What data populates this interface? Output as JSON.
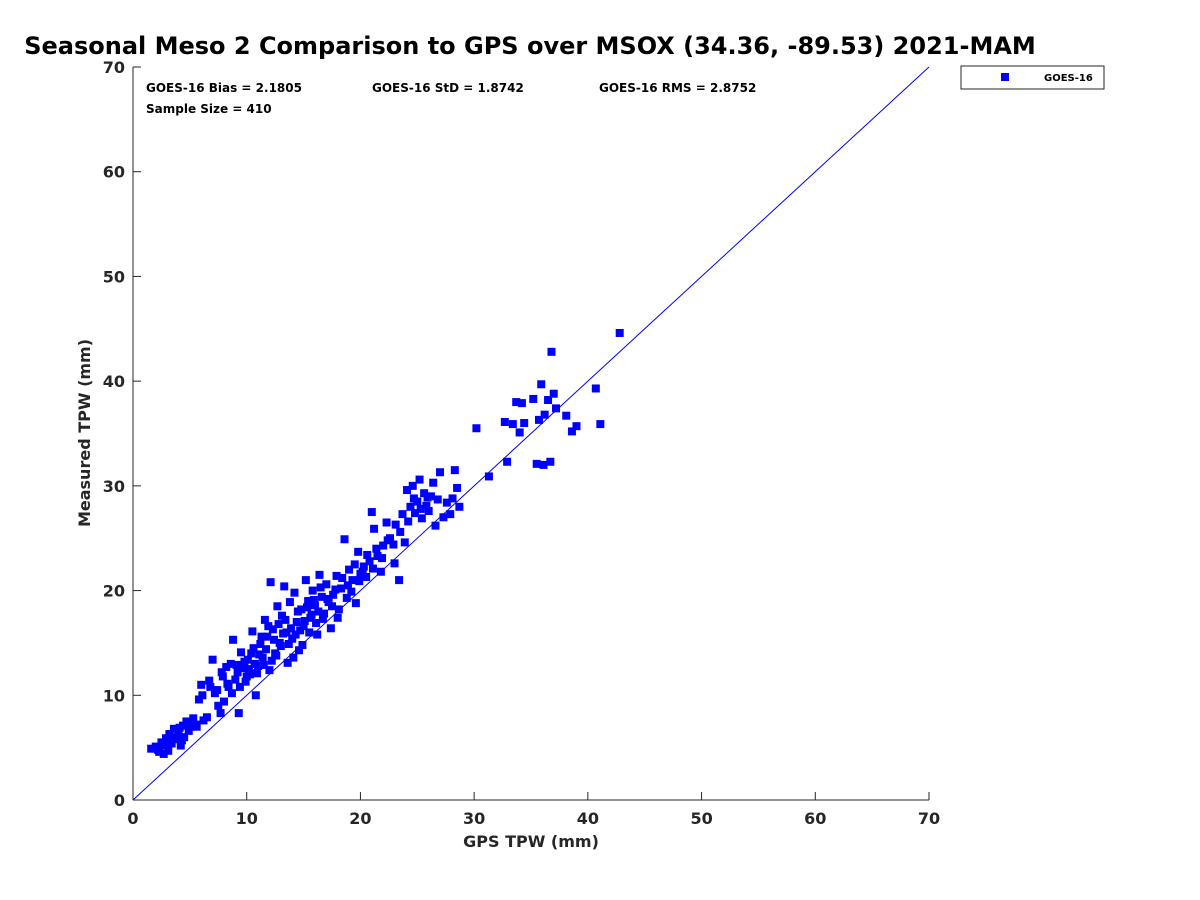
{
  "chart_data": {
    "type": "scatter",
    "title": "Seasonal Meso 2 Comparison to GPS over MSOX (34.36, -89.53) 2021-MAM",
    "xlabel": "GPS TPW (mm)",
    "ylabel": "Measured TPW (mm)",
    "xlim": [
      0,
      70
    ],
    "ylim": [
      0,
      70
    ],
    "xticks": [
      0,
      10,
      20,
      30,
      40,
      50,
      60,
      70
    ],
    "yticks": [
      0,
      10,
      20,
      30,
      40,
      50,
      60,
      70
    ],
    "grid": false,
    "legend_position": "top-right outside",
    "reference_line": {
      "x": [
        0,
        70
      ],
      "y": [
        0,
        70
      ],
      "color": "#0000ff"
    },
    "annotations": {
      "bias": "GOES-16 Bias = 2.1805",
      "std": "GOES-16 StD = 1.8742",
      "rms": "GOES-16 RMS = 2.8752",
      "sample_size": "Sample Size = 410"
    },
    "series": [
      {
        "name": "GOES-16",
        "color": "#0000ff",
        "marker": "square",
        "points": [
          [
            1.6,
            4.9
          ],
          [
            2.0,
            5.1
          ],
          [
            2.3,
            4.6
          ],
          [
            2.5,
            5.5
          ],
          [
            2.7,
            4.4
          ],
          [
            2.9,
            5.9
          ],
          [
            3.1,
            4.7
          ],
          [
            3.2,
            6.3
          ],
          [
            3.4,
            5.4
          ],
          [
            3.6,
            6.8
          ],
          [
            3.8,
            5.8
          ],
          [
            4.0,
            6.4
          ],
          [
            4.2,
            5.2
          ],
          [
            4.4,
            7.1
          ],
          [
            4.5,
            6.0
          ],
          [
            4.7,
            7.5
          ],
          [
            4.9,
            6.6
          ],
          [
            5.1,
            7.0
          ],
          [
            5.3,
            7.8
          ],
          [
            5.5,
            7.2
          ],
          [
            5.8,
            9.6
          ],
          [
            6.0,
            11.0
          ],
          [
            6.2,
            7.6
          ],
          [
            6.5,
            7.9
          ],
          [
            6.7,
            11.4
          ],
          [
            7.0,
            13.4
          ],
          [
            7.2,
            10.2
          ],
          [
            7.5,
            9.0
          ],
          [
            7.7,
            8.3
          ],
          [
            7.9,
            11.8
          ],
          [
            8.0,
            9.4
          ],
          [
            8.2,
            12.7
          ],
          [
            8.4,
            10.8
          ],
          [
            8.6,
            13.0
          ],
          [
            8.8,
            15.3
          ],
          [
            9.0,
            11.5
          ],
          [
            9.2,
            12.2
          ],
          [
            9.3,
            8.3
          ],
          [
            9.5,
            14.1
          ],
          [
            9.7,
            12.6
          ],
          [
            9.9,
            11.3
          ],
          [
            10.1,
            13.4
          ],
          [
            10.3,
            12.0
          ],
          [
            10.5,
            16.1
          ],
          [
            10.6,
            14.5
          ],
          [
            10.8,
            10.0
          ],
          [
            11.0,
            12.8
          ],
          [
            11.2,
            14.9
          ],
          [
            11.4,
            13.6
          ],
          [
            11.6,
            17.2
          ],
          [
            11.8,
            15.6
          ],
          [
            12.0,
            12.4
          ],
          [
            12.1,
            20.8
          ],
          [
            12.3,
            16.3
          ],
          [
            12.5,
            14.0
          ],
          [
            12.7,
            18.5
          ],
          [
            12.9,
            15.0
          ],
          [
            13.1,
            17.6
          ],
          [
            13.3,
            20.4
          ],
          [
            13.5,
            16.0
          ],
          [
            13.6,
            13.1
          ],
          [
            13.8,
            18.9
          ],
          [
            14.0,
            15.4
          ],
          [
            14.2,
            19.8
          ],
          [
            14.4,
            17.0
          ],
          [
            14.6,
            14.3
          ],
          [
            14.8,
            18.2
          ],
          [
            15.0,
            16.6
          ],
          [
            15.2,
            21.0
          ],
          [
            15.4,
            19.0
          ],
          [
            15.6,
            17.4
          ],
          [
            15.8,
            20.0
          ],
          [
            16.0,
            18.6
          ],
          [
            16.2,
            15.8
          ],
          [
            16.4,
            21.5
          ],
          [
            16.6,
            19.4
          ],
          [
            16.8,
            17.8
          ],
          [
            17.0,
            20.6
          ],
          [
            17.2,
            18.9
          ],
          [
            17.4,
            16.4
          ],
          [
            17.6,
            19.6
          ],
          [
            17.9,
            21.4
          ],
          [
            18.1,
            18.2
          ],
          [
            18.3,
            20.2
          ],
          [
            18.6,
            24.9
          ],
          [
            18.8,
            19.3
          ],
          [
            19.0,
            22.0
          ],
          [
            19.3,
            21.0
          ],
          [
            19.6,
            18.8
          ],
          [
            19.8,
            23.7
          ],
          [
            20.0,
            21.6
          ],
          [
            20.3,
            22.3
          ],
          [
            20.5,
            21.3
          ],
          [
            20.8,
            22.8
          ],
          [
            21.0,
            27.5
          ],
          [
            21.2,
            25.9
          ],
          [
            21.5,
            23.3
          ],
          [
            21.8,
            21.8
          ],
          [
            22.0,
            24.3
          ],
          [
            22.3,
            26.5
          ],
          [
            22.6,
            25.0
          ],
          [
            22.9,
            24.4
          ],
          [
            23.1,
            26.3
          ],
          [
            23.4,
            21.0
          ],
          [
            23.7,
            27.3
          ],
          [
            23.9,
            24.6
          ],
          [
            24.1,
            29.6
          ],
          [
            24.4,
            28.0
          ],
          [
            24.6,
            30.0
          ],
          [
            24.8,
            27.4
          ],
          [
            25.0,
            28.5
          ],
          [
            25.2,
            30.6
          ],
          [
            25.4,
            26.9
          ],
          [
            25.6,
            29.3
          ],
          [
            25.8,
            28.1
          ],
          [
            26.0,
            27.6
          ],
          [
            26.2,
            29.0
          ],
          [
            26.4,
            30.3
          ],
          [
            26.6,
            26.2
          ],
          [
            26.8,
            28.7
          ],
          [
            27.0,
            31.3
          ],
          [
            27.3,
            27.0
          ],
          [
            27.6,
            28.4
          ],
          [
            27.9,
            27.3
          ],
          [
            28.1,
            28.8
          ],
          [
            28.3,
            31.5
          ],
          [
            28.5,
            29.8
          ],
          [
            28.7,
            28.0
          ],
          [
            30.2,
            35.5
          ],
          [
            31.3,
            30.9
          ],
          [
            32.7,
            36.1
          ],
          [
            32.9,
            32.3
          ],
          [
            33.4,
            35.9
          ],
          [
            33.7,
            38.0
          ],
          [
            34.0,
            35.1
          ],
          [
            34.2,
            37.9
          ],
          [
            34.4,
            36.0
          ],
          [
            35.2,
            38.3
          ],
          [
            35.5,
            32.1
          ],
          [
            35.7,
            36.3
          ],
          [
            35.9,
            39.7
          ],
          [
            36.1,
            32.0
          ],
          [
            36.2,
            36.8
          ],
          [
            36.5,
            38.2
          ],
          [
            36.7,
            32.3
          ],
          [
            36.8,
            42.8
          ],
          [
            37.0,
            38.8
          ],
          [
            37.2,
            37.4
          ],
          [
            38.1,
            36.7
          ],
          [
            38.6,
            35.2
          ],
          [
            39.0,
            35.7
          ],
          [
            40.7,
            39.3
          ],
          [
            41.1,
            35.9
          ],
          [
            42.8,
            44.6
          ],
          [
            2.2,
            4.8
          ],
          [
            2.9,
            5.2
          ],
          [
            3.3,
            6.0
          ],
          [
            4.1,
            6.9
          ],
          [
            4.3,
            5.7
          ],
          [
            5.0,
            7.3
          ],
          [
            5.6,
            7.0
          ],
          [
            6.1,
            10.0
          ],
          [
            6.8,
            10.8
          ],
          [
            7.4,
            10.5
          ],
          [
            7.8,
            12.2
          ],
          [
            8.3,
            11.1
          ],
          [
            8.7,
            10.2
          ],
          [
            9.1,
            12.9
          ],
          [
            9.4,
            10.8
          ],
          [
            9.8,
            13.2
          ],
          [
            10.0,
            11.8
          ],
          [
            10.2,
            12.5
          ],
          [
            10.4,
            14.0
          ],
          [
            10.7,
            13.0
          ],
          [
            10.9,
            12.1
          ],
          [
            11.1,
            13.9
          ],
          [
            11.3,
            15.6
          ],
          [
            11.5,
            12.9
          ],
          [
            11.7,
            14.4
          ],
          [
            11.9,
            16.6
          ],
          [
            12.2,
            13.3
          ],
          [
            12.4,
            15.3
          ],
          [
            12.6,
            13.8
          ],
          [
            12.8,
            16.8
          ],
          [
            13.0,
            14.7
          ],
          [
            13.2,
            15.9
          ],
          [
            13.4,
            17.2
          ],
          [
            13.7,
            14.9
          ],
          [
            13.9,
            16.4
          ],
          [
            14.1,
            13.6
          ],
          [
            14.3,
            15.8
          ],
          [
            14.5,
            18.0
          ],
          [
            14.7,
            16.2
          ],
          [
            14.9,
            14.8
          ],
          [
            15.1,
            17.1
          ],
          [
            15.3,
            18.4
          ],
          [
            15.5,
            16.0
          ],
          [
            15.7,
            17.7
          ],
          [
            15.9,
            19.1
          ],
          [
            16.1,
            16.9
          ],
          [
            16.3,
            18.0
          ],
          [
            16.5,
            20.3
          ],
          [
            16.7,
            17.3
          ],
          [
            17.1,
            19.2
          ],
          [
            17.5,
            18.5
          ],
          [
            17.8,
            20.1
          ],
          [
            18.0,
            17.4
          ],
          [
            18.4,
            21.2
          ],
          [
            18.9,
            20.5
          ],
          [
            19.2,
            19.9
          ],
          [
            19.5,
            22.5
          ],
          [
            19.9,
            20.9
          ],
          [
            20.2,
            21.8
          ],
          [
            20.6,
            23.4
          ],
          [
            21.1,
            22.1
          ],
          [
            21.4,
            24.0
          ],
          [
            21.9,
            23.1
          ],
          [
            22.4,
            24.8
          ],
          [
            23.0,
            22.6
          ],
          [
            23.5,
            25.6
          ],
          [
            24.2,
            26.6
          ],
          [
            24.7,
            28.8
          ],
          [
            25.3,
            27.8
          ],
          [
            25.9,
            28.9
          ]
        ]
      }
    ]
  }
}
